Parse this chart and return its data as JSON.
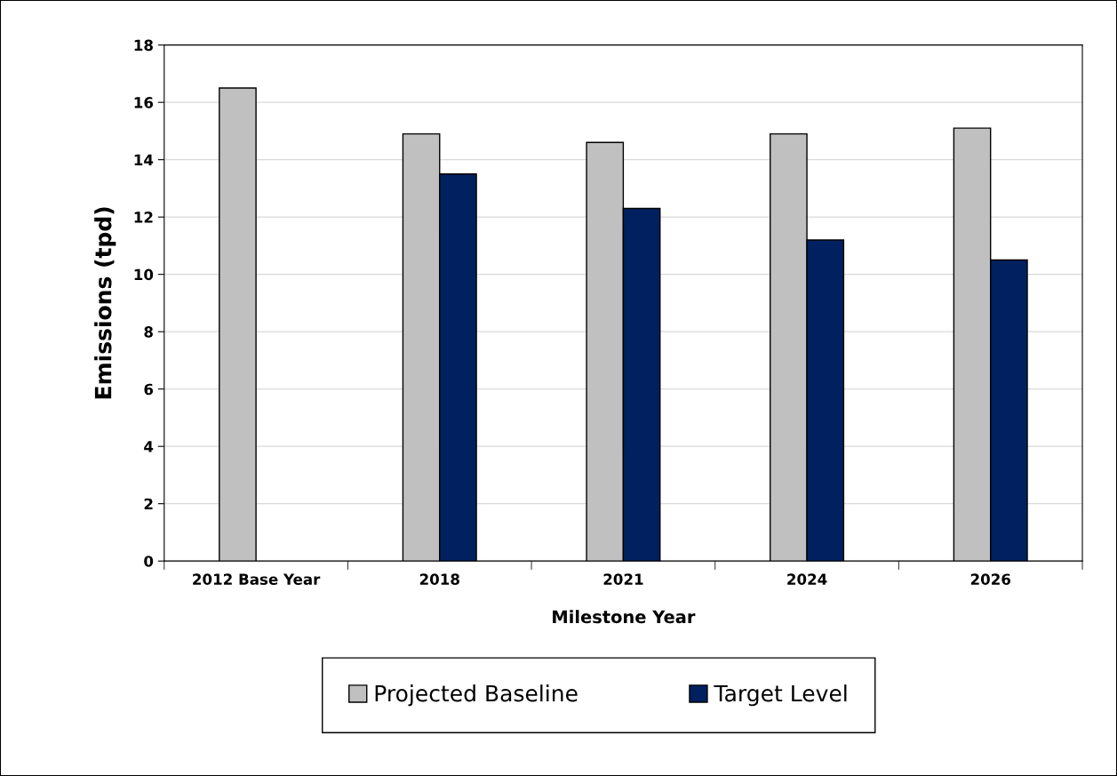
{
  "chart_data": {
    "type": "bar",
    "xlabel": "Milestone Year",
    "ylabel": "Emissions (tpd)",
    "categories": [
      "2012 Base Year",
      "2018",
      "2021",
      "2024",
      "2026"
    ],
    "series": [
      {
        "name": "Projected Baseline",
        "color": "#c0c0c0",
        "values": [
          16.5,
          14.9,
          14.6,
          14.9,
          15.1
        ]
      },
      {
        "name": "Target Level",
        "color": "#002060",
        "values": [
          null,
          13.5,
          12.3,
          11.2,
          10.5
        ]
      }
    ],
    "ylim": [
      0,
      18
    ],
    "yticks": [
      0,
      2,
      4,
      6,
      8,
      10,
      12,
      14,
      16,
      18
    ],
    "grid": "y",
    "legend": "bottom"
  }
}
